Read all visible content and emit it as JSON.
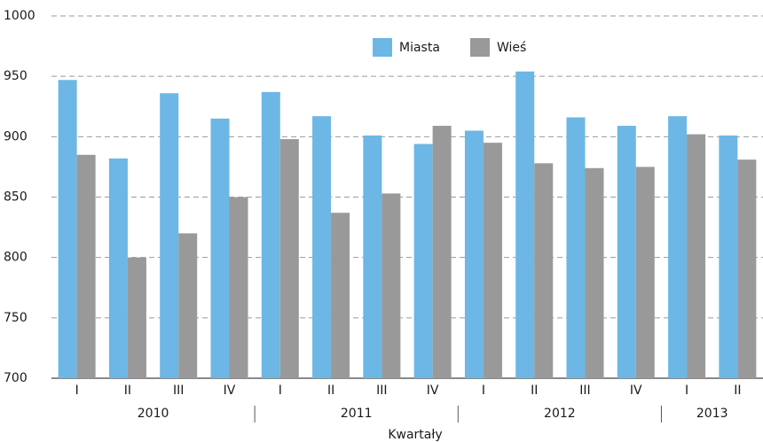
{
  "chart_data": {
    "type": "bar",
    "x_label": "Kwartały",
    "categories": [
      "I",
      "II",
      "III",
      "IV",
      "I",
      "II",
      "III",
      "IV",
      "I",
      "II",
      "III",
      "IV",
      "I",
      "II"
    ],
    "year_groups": [
      {
        "label": "2010",
        "count": 4
      },
      {
        "label": "2011",
        "count": 4
      },
      {
        "label": "2012",
        "count": 4
      },
      {
        "label": "2013",
        "count": 2
      }
    ],
    "series": [
      {
        "name": "Miasta",
        "color": "#6cb7e5",
        "values": [
          947,
          882,
          936,
          915,
          937,
          917,
          901,
          894,
          905,
          954,
          916,
          909,
          917,
          901
        ]
      },
      {
        "name": "Wieś",
        "color": "#9a9999",
        "values": [
          885,
          800,
          820,
          850,
          898,
          837,
          853,
          909,
          895,
          878,
          874,
          875,
          902,
          881
        ]
      }
    ],
    "ylim": [
      700,
      1000
    ],
    "yticks": [
      700,
      750,
      800,
      850,
      900,
      950,
      1000
    ],
    "grid": true,
    "legend": "top"
  }
}
